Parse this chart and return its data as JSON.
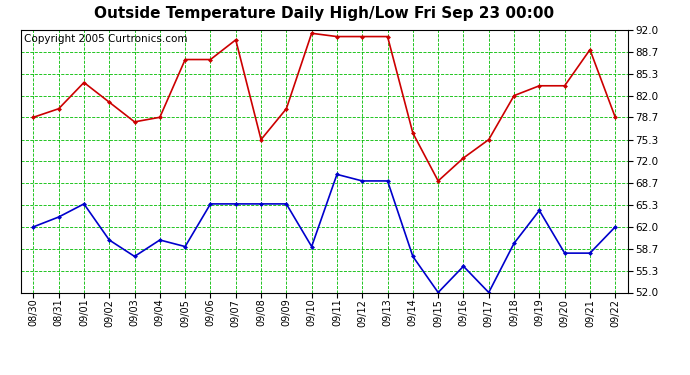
{
  "title": "Outside Temperature Daily High/Low Fri Sep 23 00:00",
  "copyright": "Copyright 2005 Curtronics.com",
  "x_labels": [
    "08/30",
    "08/31",
    "09/01",
    "09/02",
    "09/03",
    "09/04",
    "09/05",
    "09/06",
    "09/07",
    "09/08",
    "09/09",
    "09/10",
    "09/11",
    "09/12",
    "09/13",
    "09/14",
    "09/15",
    "09/16",
    "09/17",
    "09/18",
    "09/19",
    "09/20",
    "09/21",
    "09/22"
  ],
  "high_values": [
    78.7,
    80.0,
    84.0,
    81.0,
    78.0,
    78.7,
    87.5,
    87.5,
    90.5,
    75.3,
    80.0,
    91.5,
    91.0,
    91.0,
    91.0,
    76.3,
    69.0,
    72.5,
    75.3,
    82.0,
    83.5,
    83.5,
    89.0,
    78.7
  ],
  "low_values": [
    62.0,
    63.5,
    65.5,
    60.0,
    57.5,
    60.0,
    59.0,
    65.5,
    65.5,
    65.5,
    65.5,
    59.0,
    70.0,
    69.0,
    69.0,
    57.5,
    52.0,
    56.0,
    52.0,
    59.5,
    64.5,
    58.0,
    58.0,
    62.0
  ],
  "ylim": [
    52.0,
    92.0
  ],
  "yticks": [
    52.0,
    55.3,
    58.7,
    62.0,
    65.3,
    68.7,
    72.0,
    75.3,
    78.7,
    82.0,
    85.3,
    88.7,
    92.0
  ],
  "high_color": "#cc0000",
  "low_color": "#0000cc",
  "bg_color": "#ffffff",
  "grid_color": "#00bb00",
  "title_fontsize": 11,
  "copyright_fontsize": 7.5,
  "tick_fontsize": 7,
  "ytick_fontsize": 7.5
}
